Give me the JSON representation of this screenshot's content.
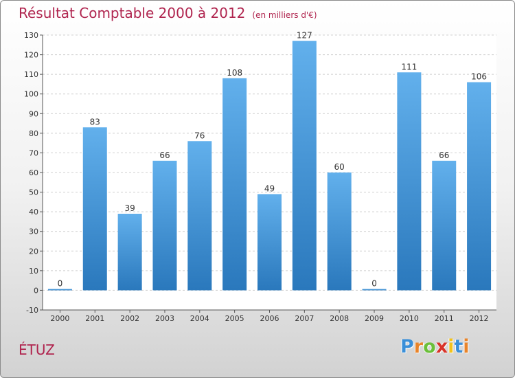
{
  "chart_data": {
    "type": "bar",
    "title": "Résultat Comptable 2000 à 2012",
    "subtitle": "(en milliers d'€)",
    "categories": [
      "2000",
      "2001",
      "2002",
      "2003",
      "2004",
      "2005",
      "2006",
      "2007",
      "2008",
      "2009",
      "2010",
      "2011",
      "2012"
    ],
    "values": [
      0,
      83,
      39,
      66,
      76,
      108,
      49,
      127,
      60,
      0,
      111,
      66,
      106
    ],
    "ylim": [
      -10,
      130
    ],
    "yticks": [
      -10,
      0,
      10,
      20,
      30,
      40,
      50,
      60,
      70,
      80,
      90,
      100,
      110,
      120,
      130
    ],
    "xlabel": "",
    "ylabel": "",
    "grid": true,
    "bar_color": "#4f9fe0"
  },
  "place_name": "ÉTUZ",
  "logo": {
    "letters": [
      "P",
      "r",
      "o",
      "x",
      "i",
      "t",
      "i"
    ],
    "colors": [
      "#3a8fd8",
      "#e8842a",
      "#6bbf3a",
      "#d8342a",
      "#f2c21c",
      "#3a8fd8",
      "#e8842a"
    ]
  }
}
